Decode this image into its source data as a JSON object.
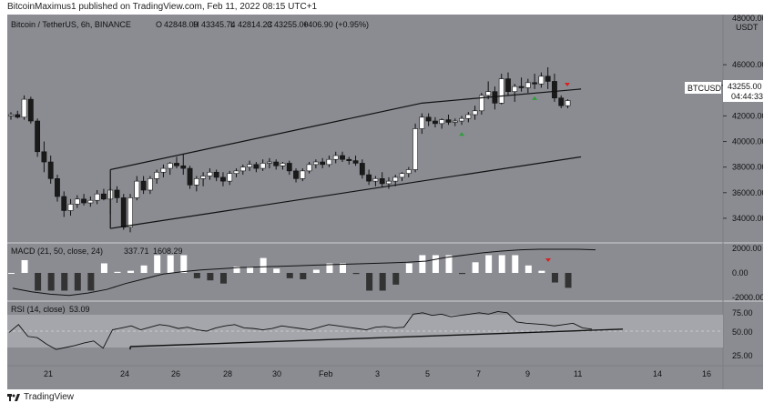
{
  "header": {
    "caption": "BitcoinMaximus1 published on TradingView.com, Feb 11, 2022 08:15 UTC+1"
  },
  "main_panel": {
    "symbol": "Bitcoin / TetherUS, 6h, BINANCE",
    "ohlc": {
      "o_label": "O",
      "o": "42848.09",
      "h_label": "H",
      "h": "43345.74",
      "l_label": "L",
      "l": "42814.23",
      "c_label": "C",
      "c": "43255.00",
      "change": "+406.90 (+0.95%)"
    },
    "currency": "USDT",
    "price_ticks": [
      "46000.00",
      "44000.00",
      "42000.00",
      "40000.00",
      "38000.00",
      "36000.00",
      "34000.00"
    ],
    "price_top_partial": "48000.00",
    "current_price": {
      "ticker": "BTCUSDT",
      "price": "43255.00",
      "countdown": "04:44:33"
    }
  },
  "macd_panel": {
    "label": "MACD (21, 50, close, 24)",
    "value1": "337.71",
    "value2": "1608.29",
    "ticks": [
      "2000.00",
      "0.00"
    ],
    "bottom_partial": "-2000.00"
  },
  "rsi_panel": {
    "label": "RSI (14, close)",
    "value": "53.09",
    "ticks": [
      "75.00",
      "50.00",
      "25.00"
    ]
  },
  "x_axis": {
    "labels": [
      "21",
      "24",
      "26",
      "28",
      "30",
      "Feb",
      "3",
      "5",
      "7",
      "9",
      "11",
      "14",
      "16"
    ]
  },
  "footer": {
    "brand": "TradingView"
  },
  "colors": {
    "background": "#8a8c92",
    "up": "#ffffff",
    "down": "#1a1a1a",
    "line": "#111111",
    "bull_marker": "#2e9e3a",
    "bear_marker": "#d8221e",
    "rsi_band": "#a4a6ab"
  },
  "chart_data": {
    "type": "candlestick",
    "title": "Bitcoin / TetherUS, 6h, BINANCE",
    "ylim": [
      32500,
      48500
    ],
    "candles": [
      [
        42000,
        42300,
        41700,
        42100
      ],
      [
        42100,
        42400,
        41800,
        41900
      ],
      [
        41900,
        43600,
        41700,
        43300
      ],
      [
        43300,
        43500,
        41400,
        41600
      ],
      [
        41600,
        41800,
        38800,
        39200
      ],
      [
        39200,
        40000,
        37600,
        38400
      ],
      [
        38400,
        38900,
        36700,
        37100
      ],
      [
        37100,
        37400,
        35300,
        35700
      ],
      [
        35700,
        36100,
        34100,
        34600
      ],
      [
        34600,
        35500,
        34200,
        35100
      ],
      [
        35100,
        35800,
        34800,
        35500
      ],
      [
        35500,
        35900,
        35000,
        35200
      ],
      [
        35200,
        35700,
        34900,
        35400
      ],
      [
        35400,
        36200,
        35100,
        35900
      ],
      [
        35900,
        36300,
        35400,
        35500
      ],
      [
        35500,
        36400,
        34300,
        36200
      ],
      [
        36200,
        36500,
        35200,
        35600
      ],
      [
        35600,
        35900,
        33100,
        33300
      ],
      [
        33300,
        35900,
        32900,
        35600
      ],
      [
        35600,
        37300,
        35400,
        36900
      ],
      [
        36900,
        37300,
        35900,
        36200
      ],
      [
        36200,
        37300,
        35900,
        37100
      ],
      [
        37100,
        37800,
        36700,
        37600
      ],
      [
        37600,
        38200,
        37200,
        37900
      ],
      [
        37900,
        38400,
        37400,
        38300
      ],
      [
        38300,
        38800,
        37900,
        38100
      ],
      [
        38100,
        39000,
        37400,
        37900
      ],
      [
        37900,
        38100,
        36300,
        36600
      ],
      [
        36600,
        37300,
        36100,
        37100
      ],
      [
        37100,
        37600,
        36500,
        37300
      ],
      [
        37300,
        37900,
        37000,
        37600
      ],
      [
        37600,
        37800,
        36900,
        37200
      ],
      [
        37200,
        37600,
        36500,
        36900
      ],
      [
        36900,
        37700,
        36600,
        37500
      ],
      [
        37500,
        37900,
        37200,
        37700
      ],
      [
        37700,
        38200,
        37400,
        38000
      ],
      [
        38000,
        38500,
        37700,
        38200
      ],
      [
        38200,
        38400,
        37600,
        37900
      ],
      [
        37900,
        38600,
        37700,
        38300
      ],
      [
        38300,
        38700,
        37900,
        38400
      ],
      [
        38400,
        38600,
        37800,
        38100
      ],
      [
        38100,
        38400,
        37800,
        38300
      ],
      [
        38300,
        38500,
        37400,
        37700
      ],
      [
        37700,
        37900,
        36800,
        37100
      ],
      [
        37100,
        37900,
        36900,
        37700
      ],
      [
        37700,
        38400,
        37500,
        38200
      ],
      [
        38200,
        38600,
        37900,
        38400
      ],
      [
        38400,
        38700,
        37900,
        38200
      ],
      [
        38200,
        38900,
        38000,
        38600
      ],
      [
        38600,
        39200,
        38300,
        38900
      ],
      [
        38900,
        39200,
        38400,
        38600
      ],
      [
        38600,
        38800,
        38200,
        38500
      ],
      [
        38500,
        38900,
        38100,
        38300
      ],
      [
        38300,
        38600,
        37100,
        37400
      ],
      [
        37400,
        37800,
        36600,
        36900
      ],
      [
        36900,
        37300,
        36500,
        37100
      ],
      [
        37100,
        37600,
        36400,
        36700
      ],
      [
        36700,
        37200,
        36300,
        36900
      ],
      [
        36900,
        37400,
        36500,
        37200
      ],
      [
        37200,
        37600,
        36900,
        37500
      ],
      [
        37500,
        38000,
        37200,
        37800
      ],
      [
        37800,
        41400,
        37600,
        41000
      ],
      [
        41000,
        42200,
        40600,
        41900
      ],
      [
        41900,
        42200,
        41200,
        41600
      ],
      [
        41600,
        41900,
        41100,
        41400
      ],
      [
        41400,
        41800,
        41000,
        41700
      ],
      [
        41700,
        42100,
        41300,
        41500
      ],
      [
        41500,
        41800,
        41200,
        41600
      ],
      [
        41600,
        42000,
        41300,
        41800
      ],
      [
        41800,
        42300,
        41500,
        42100
      ],
      [
        42100,
        42800,
        41700,
        42400
      ],
      [
        42400,
        43800,
        42100,
        43600
      ],
      [
        43600,
        44700,
        43300,
        43900
      ],
      [
        43900,
        44300,
        42500,
        43000
      ],
      [
        43000,
        45300,
        42900,
        44900
      ],
      [
        44900,
        45400,
        43600,
        43900
      ],
      [
        43900,
        44500,
        43100,
        44300
      ],
      [
        44300,
        45000,
        43900,
        44200
      ],
      [
        44200,
        44900,
        43800,
        44600
      ],
      [
        44600,
        45300,
        44100,
        44500
      ],
      [
        44500,
        45400,
        44200,
        45100
      ],
      [
        45100,
        45800,
        44100,
        44700
      ],
      [
        44700,
        45300,
        43100,
        43400
      ],
      [
        43400,
        43600,
        42600,
        42800
      ],
      [
        42800,
        43300,
        42600,
        43200
      ]
    ],
    "channel_upper": [
      [
        15,
        37800
      ],
      [
        62,
        43000
      ],
      [
        86,
        44100
      ]
    ],
    "channel_lower": [
      [
        15,
        33200
      ],
      [
        86,
        38800
      ]
    ],
    "bull_markers": [
      68,
      79
    ],
    "bear_markers": [
      82
    ],
    "macd_signal": [
      -1300,
      -1600,
      -1800,
      -1900,
      -1700,
      -1400,
      -900,
      -500,
      -100,
      100,
      250,
      350,
      450,
      500,
      550,
      600,
      650,
      700,
      750,
      800,
      850,
      900,
      1000,
      1300,
      1500,
      1700,
      1850,
      1950,
      2000,
      2000,
      2000,
      1950
    ],
    "rsi": [
      48,
      60,
      42,
      40,
      30,
      22,
      25,
      28,
      32,
      35,
      24,
      52,
      55,
      58,
      52,
      56,
      60,
      58,
      54,
      56,
      52,
      50,
      55,
      58,
      60,
      55,
      54,
      52,
      54,
      58,
      56,
      54,
      52,
      56,
      60,
      58,
      56,
      54,
      52,
      56,
      57,
      55,
      56,
      76,
      78,
      74,
      76,
      72,
      74,
      76,
      78,
      76,
      80,
      78,
      64,
      62,
      61,
      60,
      58,
      60,
      62,
      55,
      53
    ]
  }
}
